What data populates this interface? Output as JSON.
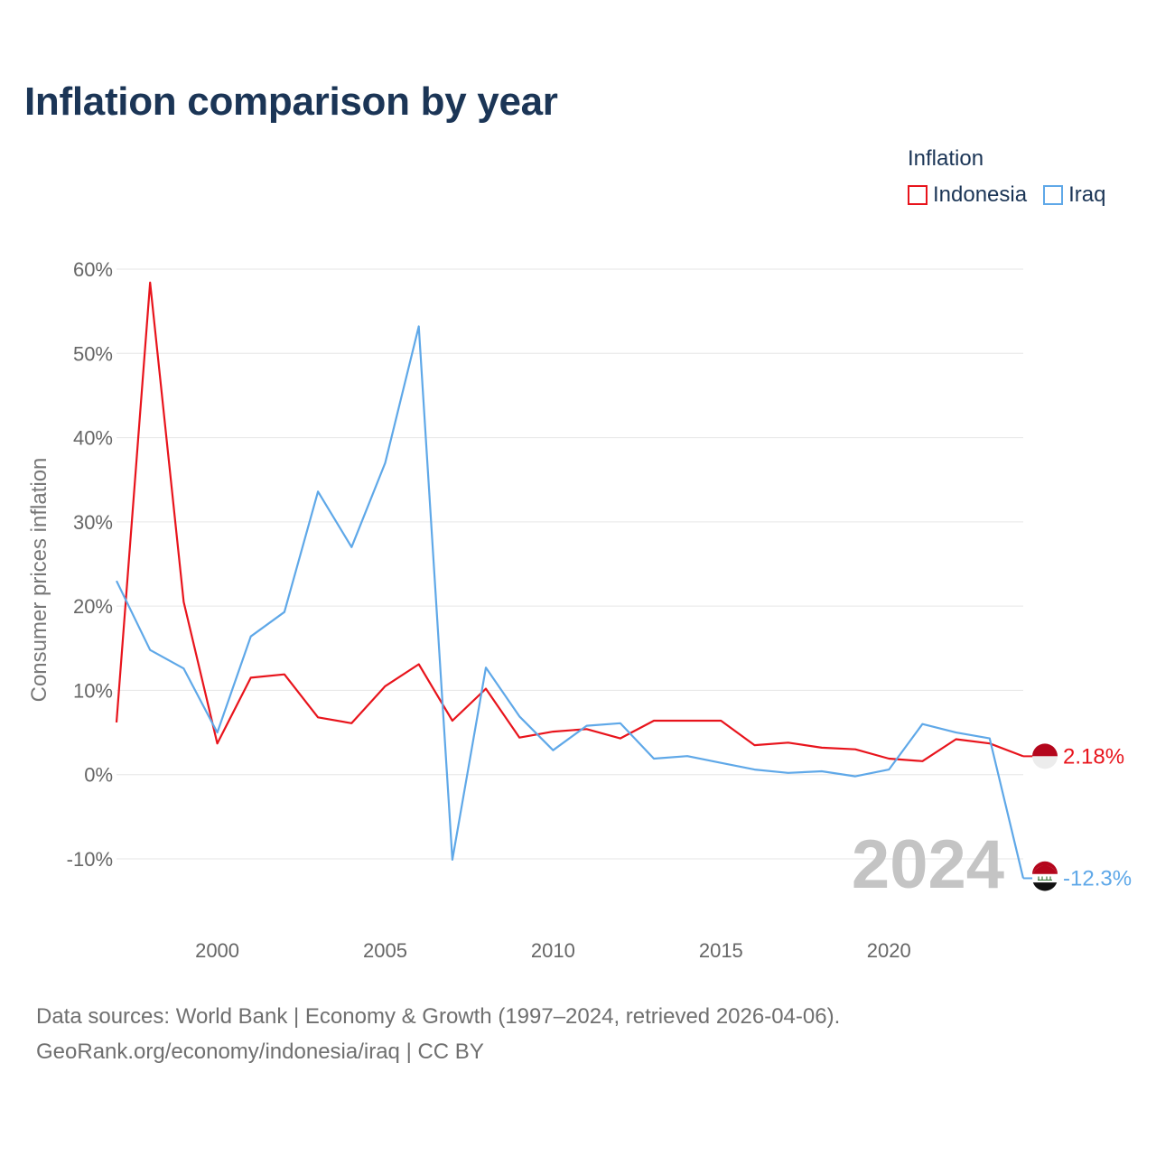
{
  "title": "Inflation comparison by year",
  "legend": {
    "title": "Inflation",
    "items": [
      {
        "label": "Indonesia",
        "color": "#e8141c"
      },
      {
        "label": "Iraq",
        "color": "#5fa8e8"
      }
    ]
  },
  "chart_data": {
    "type": "line",
    "title": "Inflation comparison by year",
    "xlabel": "",
    "ylabel": "Consumer prices inflation",
    "xlim": [
      1997,
      2024
    ],
    "ylim": [
      -10,
      60
    ],
    "grid": true,
    "y_ticks": [
      {
        "value": -10,
        "label": "-10%"
      },
      {
        "value": 0,
        "label": "0%"
      },
      {
        "value": 10,
        "label": "10%"
      },
      {
        "value": 20,
        "label": "20%"
      },
      {
        "value": 30,
        "label": "30%"
      },
      {
        "value": 40,
        "label": "40%"
      },
      {
        "value": 50,
        "label": "50%"
      },
      {
        "value": 60,
        "label": "60%"
      }
    ],
    "x_ticks": [
      {
        "value": 2000,
        "label": "2000"
      },
      {
        "value": 2005,
        "label": "2005"
      },
      {
        "value": 2010,
        "label": "2010"
      },
      {
        "value": 2015,
        "label": "2015"
      },
      {
        "value": 2020,
        "label": "2020"
      }
    ],
    "x": [
      1997,
      1998,
      1999,
      2000,
      2001,
      2002,
      2003,
      2004,
      2005,
      2006,
      2007,
      2008,
      2009,
      2010,
      2011,
      2012,
      2013,
      2014,
      2015,
      2016,
      2017,
      2018,
      2019,
      2020,
      2021,
      2022,
      2023,
      2024
    ],
    "series": [
      {
        "name": "Indonesia",
        "color": "#e8141c",
        "end_label": "2.18%",
        "flag": "indonesia-flag-icon",
        "values": [
          6.2,
          58.4,
          20.5,
          3.7,
          11.5,
          11.9,
          6.8,
          6.1,
          10.5,
          13.1,
          6.4,
          10.2,
          4.4,
          5.1,
          5.4,
          4.3,
          6.4,
          6.4,
          6.4,
          3.5,
          3.8,
          3.2,
          3.0,
          1.9,
          1.6,
          4.2,
          3.7,
          2.18
        ]
      },
      {
        "name": "Iraq",
        "color": "#5fa8e8",
        "end_label": "-12.3%",
        "flag": "iraq-flag-icon",
        "values": [
          23.0,
          14.8,
          12.6,
          5.0,
          16.4,
          19.3,
          33.6,
          27.0,
          37.0,
          53.2,
          -10.1,
          12.7,
          6.9,
          2.9,
          5.8,
          6.1,
          1.9,
          2.2,
          1.4,
          0.6,
          0.2,
          0.4,
          -0.2,
          0.6,
          6.0,
          5.0,
          4.3,
          -12.3
        ]
      }
    ],
    "annotation": "2024"
  },
  "footer": {
    "line1": "Data sources: World Bank | Economy & Growth (1997–2024, retrieved 2026-04-06).",
    "line2": "GeoRank.org/economy/indonesia/iraq | CC BY"
  }
}
